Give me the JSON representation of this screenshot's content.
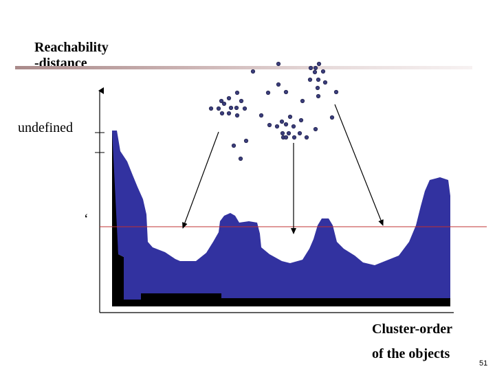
{
  "title": {
    "line1": "Reachability",
    "line2": "-distance"
  },
  "axis": {
    "undefined_label": "undefined",
    "epsilon_label": "‘",
    "x_label_line1": "Cluster-order",
    "x_label_line2": "of the objects"
  },
  "page_number": "51",
  "colors": {
    "plot_fill": "#3232a0",
    "threshold_line": "#c03030",
    "point_fill": "#3a3d7a",
    "title_bar": "#b89a9a"
  }
}
